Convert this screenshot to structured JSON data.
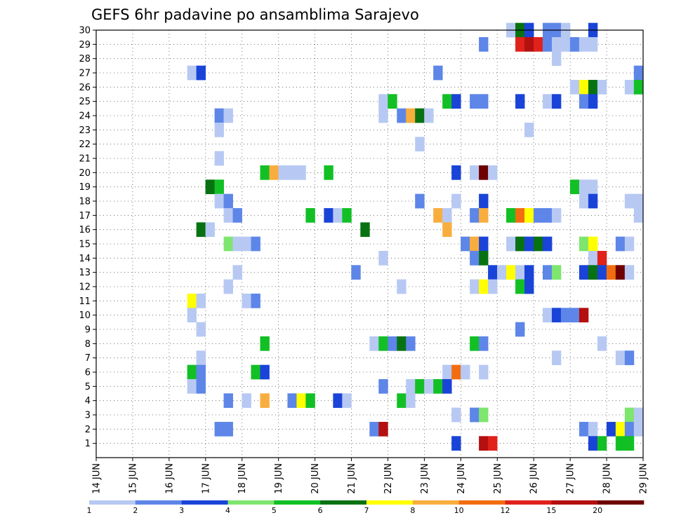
{
  "chart_data": {
    "type": "heatmap",
    "title": "GEFS 6hr padavine po ansamblima Sarajevo",
    "xlabel": "",
    "ylabel": "",
    "x_ticks": [
      "14 JUN",
      "15 JUN",
      "16 JUN",
      "17 JUN",
      "18 JUN",
      "19 JUN",
      "20 JUN",
      "21 JUN",
      "22 JUN",
      "23 JUN",
      "24 JUN",
      "25 JUN",
      "26 JUN",
      "27 JUN",
      "28 JUN",
      "29 JUN"
    ],
    "xlim": [
      0,
      60
    ],
    "y_ticks": [
      1,
      2,
      3,
      4,
      5,
      6,
      7,
      8,
      9,
      10,
      11,
      12,
      13,
      14,
      15,
      16,
      17,
      18,
      19,
      20,
      21,
      22,
      23,
      24,
      25,
      26,
      27,
      28,
      29,
      30
    ],
    "ylim": [
      0,
      30
    ],
    "grid": true,
    "legend": {
      "placement": "bottom",
      "labels": [
        "1",
        "2",
        "3",
        "4",
        "5",
        "6",
        "7",
        "8",
        "10",
        "12",
        "15",
        "20"
      ],
      "colors": [
        "#b7c9f3",
        "#5e86e8",
        "#1a44d8",
        "#7ee56e",
        "#12c025",
        "#087212",
        "#ffff00",
        "#f8ae3e",
        "#f26d10",
        "#e0221b",
        "#b41010",
        "#6e0000"
      ]
    },
    "cells": [
      [
        30,
        45,
        1
      ],
      [
        30,
        46,
        6
      ],
      [
        30,
        47,
        3
      ],
      [
        30,
        49,
        2
      ],
      [
        30,
        50,
        2
      ],
      [
        30,
        51,
        1
      ],
      [
        30,
        54,
        3
      ],
      [
        29,
        42,
        2
      ],
      [
        29,
        46,
        10
      ],
      [
        29,
        47,
        11
      ],
      [
        29,
        48,
        10
      ],
      [
        29,
        49,
        2
      ],
      [
        29,
        50,
        1
      ],
      [
        29,
        51,
        1
      ],
      [
        29,
        52,
        2
      ],
      [
        29,
        53,
        1
      ],
      [
        29,
        54,
        1
      ],
      [
        28,
        50,
        1
      ],
      [
        27,
        10,
        1
      ],
      [
        27,
        11,
        3
      ],
      [
        27,
        37,
        2
      ],
      [
        27,
        59,
        2
      ],
      [
        26,
        52,
        1
      ],
      [
        26,
        53,
        7
      ],
      [
        26,
        54,
        6
      ],
      [
        26,
        55,
        1
      ],
      [
        26,
        58,
        1
      ],
      [
        26,
        59,
        5
      ],
      [
        25,
        31,
        1
      ],
      [
        25,
        32,
        5
      ],
      [
        25,
        38,
        5
      ],
      [
        25,
        39,
        3
      ],
      [
        25,
        41,
        2
      ],
      [
        25,
        42,
        2
      ],
      [
        25,
        46,
        3
      ],
      [
        25,
        49,
        1
      ],
      [
        25,
        50,
        3
      ],
      [
        25,
        53,
        2
      ],
      [
        25,
        54,
        3
      ],
      [
        24,
        13,
        2
      ],
      [
        24,
        14,
        1
      ],
      [
        24,
        31,
        1
      ],
      [
        24,
        33,
        2
      ],
      [
        24,
        34,
        8
      ],
      [
        24,
        35,
        6
      ],
      [
        24,
        36,
        1
      ],
      [
        23,
        13,
        1
      ],
      [
        23,
        47,
        1
      ],
      [
        22,
        35,
        1
      ],
      [
        21,
        13,
        1
      ],
      [
        20,
        18,
        5
      ],
      [
        20,
        19,
        8
      ],
      [
        20,
        20,
        1
      ],
      [
        20,
        21,
        1
      ],
      [
        20,
        22,
        1
      ],
      [
        20,
        25,
        5
      ],
      [
        20,
        39,
        3
      ],
      [
        20,
        41,
        1
      ],
      [
        20,
        42,
        12
      ],
      [
        20,
        43,
        1
      ],
      [
        19,
        12,
        6
      ],
      [
        19,
        13,
        5
      ],
      [
        19,
        52,
        5
      ],
      [
        19,
        53,
        1
      ],
      [
        19,
        54,
        1
      ],
      [
        18,
        13,
        1
      ],
      [
        18,
        14,
        2
      ],
      [
        18,
        35,
        2
      ],
      [
        18,
        39,
        1
      ],
      [
        18,
        42,
        3
      ],
      [
        18,
        53,
        1
      ],
      [
        18,
        54,
        3
      ],
      [
        18,
        58,
        1
      ],
      [
        18,
        59,
        1
      ],
      [
        17,
        14,
        1
      ],
      [
        17,
        15,
        2
      ],
      [
        17,
        23,
        5
      ],
      [
        17,
        25,
        3
      ],
      [
        17,
        26,
        1
      ],
      [
        17,
        27,
        5
      ],
      [
        17,
        37,
        8
      ],
      [
        17,
        38,
        1
      ],
      [
        17,
        41,
        2
      ],
      [
        17,
        42,
        8
      ],
      [
        17,
        45,
        5
      ],
      [
        17,
        46,
        9
      ],
      [
        17,
        47,
        7
      ],
      [
        17,
        48,
        2
      ],
      [
        17,
        49,
        2
      ],
      [
        17,
        50,
        1
      ],
      [
        17,
        59,
        1
      ],
      [
        16,
        11,
        6
      ],
      [
        16,
        12,
        1
      ],
      [
        16,
        29,
        6
      ],
      [
        16,
        38,
        8
      ],
      [
        15,
        14,
        4
      ],
      [
        15,
        15,
        1
      ],
      [
        15,
        16,
        1
      ],
      [
        15,
        17,
        2
      ],
      [
        15,
        40,
        2
      ],
      [
        15,
        41,
        8
      ],
      [
        15,
        42,
        3
      ],
      [
        15,
        45,
        1
      ],
      [
        15,
        46,
        6
      ],
      [
        15,
        47,
        3
      ],
      [
        15,
        48,
        6
      ],
      [
        15,
        49,
        3
      ],
      [
        15,
        53,
        4
      ],
      [
        15,
        54,
        7
      ],
      [
        15,
        57,
        2
      ],
      [
        15,
        58,
        1
      ],
      [
        14,
        31,
        1
      ],
      [
        14,
        41,
        2
      ],
      [
        14,
        42,
        6
      ],
      [
        14,
        54,
        1
      ],
      [
        14,
        55,
        10
      ],
      [
        13,
        15,
        1
      ],
      [
        13,
        28,
        2
      ],
      [
        13,
        43,
        3
      ],
      [
        13,
        44,
        1
      ],
      [
        13,
        45,
        7
      ],
      [
        13,
        46,
        1
      ],
      [
        13,
        47,
        3
      ],
      [
        13,
        49,
        2
      ],
      [
        13,
        50,
        4
      ],
      [
        13,
        53,
        3
      ],
      [
        13,
        54,
        6
      ],
      [
        13,
        55,
        3
      ],
      [
        13,
        56,
        9
      ],
      [
        13,
        57,
        12
      ],
      [
        13,
        58,
        1
      ],
      [
        12,
        14,
        1
      ],
      [
        12,
        33,
        1
      ],
      [
        12,
        41,
        1
      ],
      [
        12,
        42,
        7
      ],
      [
        12,
        43,
        1
      ],
      [
        12,
        46,
        5
      ],
      [
        12,
        47,
        3
      ],
      [
        11,
        10,
        7
      ],
      [
        11,
        11,
        1
      ],
      [
        11,
        16,
        1
      ],
      [
        11,
        17,
        2
      ],
      [
        10,
        10,
        1
      ],
      [
        10,
        49,
        1
      ],
      [
        10,
        50,
        3
      ],
      [
        10,
        51,
        2
      ],
      [
        10,
        52,
        2
      ],
      [
        10,
        53,
        11
      ],
      [
        9,
        11,
        1
      ],
      [
        9,
        46,
        2
      ],
      [
        8,
        18,
        5
      ],
      [
        8,
        30,
        1
      ],
      [
        8,
        31,
        5
      ],
      [
        8,
        32,
        2
      ],
      [
        8,
        33,
        6
      ],
      [
        8,
        34,
        2
      ],
      [
        8,
        41,
        5
      ],
      [
        8,
        42,
        2
      ],
      [
        8,
        55,
        1
      ],
      [
        7,
        11,
        1
      ],
      [
        7,
        50,
        1
      ],
      [
        7,
        57,
        1
      ],
      [
        7,
        58,
        2
      ],
      [
        6,
        10,
        5
      ],
      [
        6,
        11,
        2
      ],
      [
        6,
        17,
        5
      ],
      [
        6,
        18,
        3
      ],
      [
        6,
        38,
        1
      ],
      [
        6,
        39,
        9
      ],
      [
        6,
        40,
        1
      ],
      [
        6,
        42,
        1
      ],
      [
        5,
        10,
        1
      ],
      [
        5,
        11,
        2
      ],
      [
        5,
        31,
        2
      ],
      [
        5,
        34,
        1
      ],
      [
        5,
        35,
        5
      ],
      [
        5,
        36,
        1
      ],
      [
        5,
        37,
        5
      ],
      [
        5,
        38,
        3
      ],
      [
        4,
        14,
        2
      ],
      [
        4,
        16,
        1
      ],
      [
        4,
        18,
        8
      ],
      [
        4,
        21,
        2
      ],
      [
        4,
        22,
        7
      ],
      [
        4,
        23,
        5
      ],
      [
        4,
        26,
        3
      ],
      [
        4,
        27,
        1
      ],
      [
        4,
        33,
        5
      ],
      [
        4,
        34,
        1
      ],
      [
        3,
        39,
        1
      ],
      [
        3,
        41,
        2
      ],
      [
        3,
        42,
        4
      ],
      [
        3,
        58,
        4
      ],
      [
        3,
        59,
        1
      ],
      [
        2,
        13,
        2
      ],
      [
        2,
        14,
        2
      ],
      [
        2,
        30,
        2
      ],
      [
        2,
        31,
        11
      ],
      [
        2,
        53,
        2
      ],
      [
        2,
        54,
        1
      ],
      [
        2,
        56,
        3
      ],
      [
        2,
        57,
        7
      ],
      [
        2,
        58,
        2
      ],
      [
        2,
        59,
        1
      ],
      [
        1,
        39,
        3
      ],
      [
        1,
        42,
        11
      ],
      [
        1,
        43,
        10
      ],
      [
        1,
        54,
        3
      ],
      [
        1,
        55,
        5
      ],
      [
        1,
        57,
        5
      ],
      [
        1,
        58,
        5
      ]
    ]
  }
}
